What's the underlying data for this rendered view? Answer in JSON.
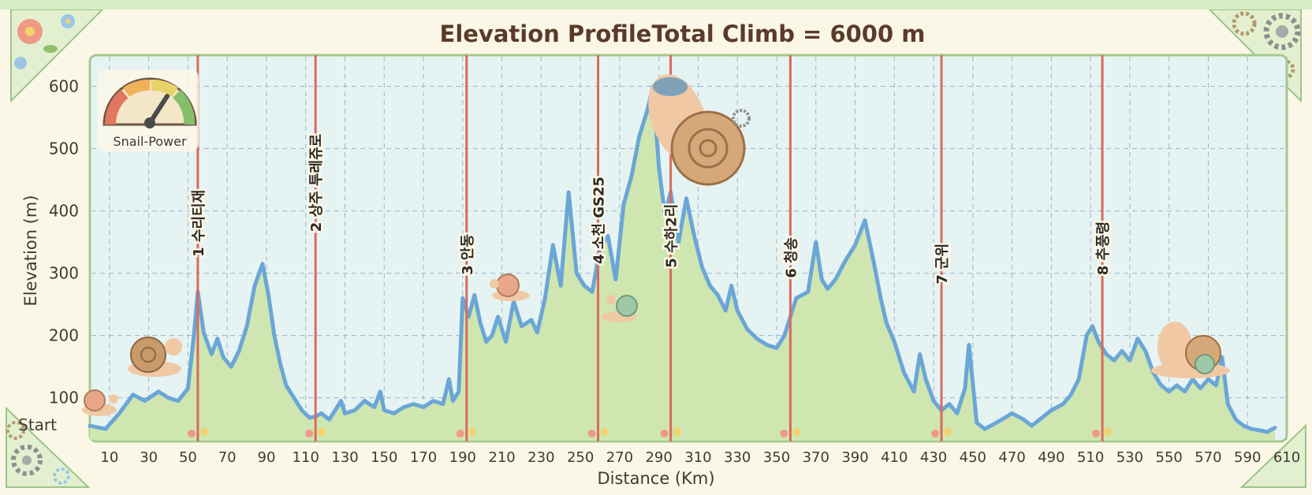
{
  "chart_data": {
    "type": "area",
    "title": "Elevation Profile",
    "subtitle": "Total Climb = 6000 m",
    "xlabel": "Distance (Km)",
    "ylabel": "Elevation (m)",
    "xlim": [
      0,
      610
    ],
    "ylim": [
      30,
      650
    ],
    "x_ticks": [
      10,
      30,
      50,
      70,
      90,
      110,
      130,
      150,
      170,
      190,
      210,
      230,
      250,
      270,
      290,
      310,
      330,
      350,
      370,
      390,
      410,
      430,
      450,
      470,
      490,
      510,
      530,
      550,
      570,
      590,
      610
    ],
    "y_ticks": [
      100,
      200,
      300,
      400,
      500,
      600
    ],
    "y_start_label": "Start",
    "grid": true,
    "gauge_label": "Snail-Power",
    "colors": {
      "line": "#6aa6d6",
      "fill": "#cfe6b0",
      "marker": "#d96a5e",
      "plot_bg": "#e6f3f3",
      "title": "#5a3b2a"
    },
    "series": [
      {
        "x": [
          0,
          8,
          15,
          22,
          28,
          35,
          40,
          45,
          50,
          53,
          55,
          58,
          62,
          65,
          68,
          72,
          76,
          80,
          84,
          88,
          91,
          94,
          97,
          100,
          104,
          108,
          112,
          115,
          118,
          122,
          126,
          128,
          130,
          135,
          140,
          145,
          148,
          150,
          155,
          160,
          165,
          170,
          175,
          180,
          183,
          185,
          188,
          190,
          193,
          196,
          199,
          202,
          205,
          208,
          212,
          216,
          220,
          225,
          228,
          232,
          236,
          240,
          244,
          248,
          252,
          256,
          260,
          264,
          268,
          272,
          276,
          280,
          284,
          287,
          290,
          293,
          296,
          300,
          304,
          308,
          312,
          316,
          320,
          324,
          327,
          330,
          335,
          340,
          345,
          350,
          354,
          357,
          360,
          363,
          366,
          370,
          373,
          376,
          380,
          385,
          390,
          395,
          400,
          403,
          406,
          410,
          415,
          420,
          423,
          426,
          430,
          434,
          438,
          442,
          446,
          448,
          452,
          456,
          462,
          470,
          476,
          480,
          486,
          490,
          496,
          500,
          504,
          508,
          511,
          514,
          518,
          522,
          526,
          530,
          534,
          538,
          542,
          546,
          550,
          554,
          558,
          562,
          566,
          570,
          574,
          577,
          580,
          584,
          588,
          592,
          596,
          600,
          604
        ],
        "y": [
          55,
          50,
          75,
          105,
          95,
          110,
          100,
          95,
          115,
          200,
          270,
          205,
          170,
          195,
          165,
          150,
          175,
          215,
          280,
          315,
          265,
          200,
          155,
          120,
          100,
          80,
          68,
          70,
          75,
          65,
          85,
          95,
          75,
          80,
          95,
          85,
          110,
          80,
          75,
          85,
          90,
          85,
          95,
          90,
          130,
          95,
          110,
          260,
          230,
          265,
          220,
          190,
          200,
          230,
          190,
          255,
          215,
          225,
          205,
          260,
          345,
          280,
          430,
          300,
          280,
          270,
          340,
          360,
          290,
          410,
          455,
          520,
          560,
          600,
          470,
          395,
          430,
          350,
          420,
          360,
          310,
          280,
          265,
          240,
          280,
          240,
          210,
          195,
          185,
          180,
          200,
          230,
          260,
          265,
          270,
          350,
          290,
          275,
          290,
          320,
          345,
          385,
          310,
          260,
          220,
          190,
          140,
          110,
          170,
          130,
          95,
          80,
          90,
          75,
          115,
          185,
          60,
          50,
          60,
          75,
          65,
          55,
          70,
          80,
          90,
          105,
          130,
          200,
          215,
          190,
          170,
          160,
          175,
          160,
          195,
          175,
          140,
          120,
          110,
          120,
          110,
          130,
          115,
          130,
          120,
          165,
          90,
          65,
          55,
          50,
          48,
          45,
          52
        ]
      }
    ],
    "markers": [
      {
        "x": 55,
        "label": "1 수리티재",
        "label_y": 380
      },
      {
        "x": 115,
        "label": "2 상주 투레쥬로",
        "label_y": 445
      },
      {
        "x": 192,
        "label": "3 안동",
        "label_y": 330
      },
      {
        "x": 259,
        "label": "4 소천 GS25",
        "label_y": 385
      },
      {
        "x": 296,
        "label": "5 수하2리",
        "label_y": 360
      },
      {
        "x": 357,
        "label": "6 청송",
        "label_y": 325
      },
      {
        "x": 434,
        "label": "7 군위",
        "label_y": 315
      },
      {
        "x": 516,
        "label": "8 추풍령",
        "label_y": 340
      }
    ]
  }
}
